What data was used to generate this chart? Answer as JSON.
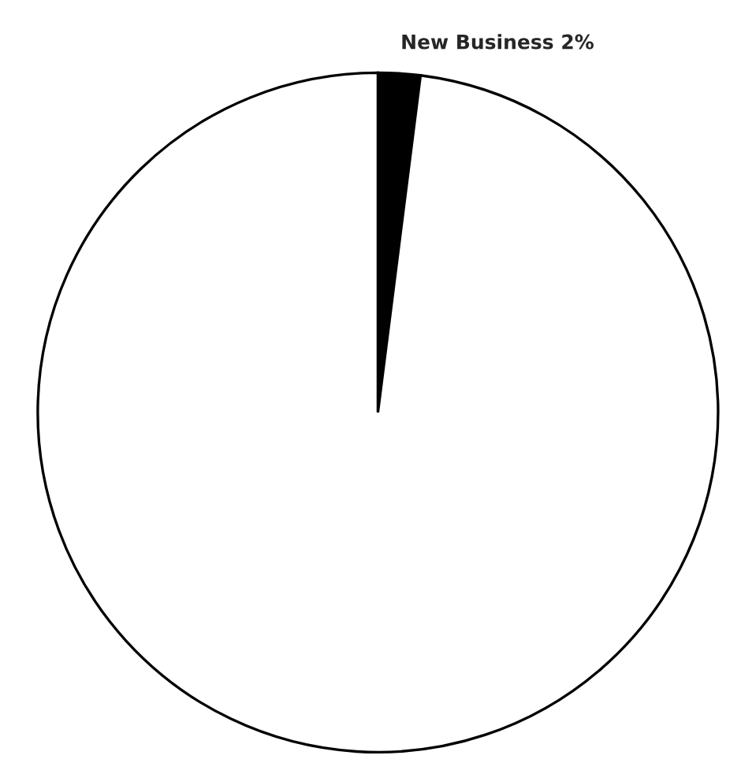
{
  "chart_data": {
    "type": "pie",
    "categories": [
      "New Business",
      null
    ],
    "values": [
      2,
      98
    ],
    "value_labels": [
      "2%",
      null
    ],
    "colors": [
      "#000000",
      "#ffffff"
    ]
  }
}
